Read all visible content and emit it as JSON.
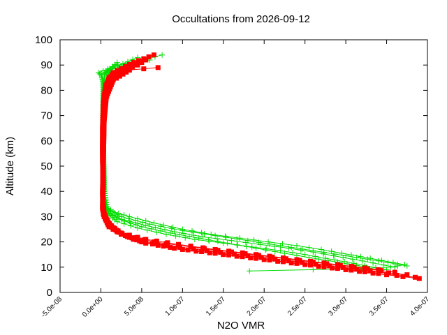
{
  "chart_data": {
    "type": "line",
    "title": "Occultations from 2026-09-12",
    "xlabel": "N2O VMR",
    "ylabel": "Altitude (km)",
    "xlim": [
      -5e-08,
      4e-07
    ],
    "ylim": [
      0,
      100
    ],
    "x_ticks": [
      -5e-08,
      0,
      5e-08,
      1e-07,
      1.5e-07,
      2e-07,
      2.5e-07,
      3e-07,
      3.5e-07,
      4e-07
    ],
    "x_tick_labels": [
      "-5.0e-08",
      "0.0e+00",
      "5.0e-08",
      "1.0e-07",
      "1.5e-07",
      "2.0e-07",
      "2.5e-07",
      "3.0e-07",
      "3.5e-07",
      "4.0e-07"
    ],
    "y_ticks": [
      0,
      10,
      20,
      30,
      40,
      50,
      60,
      70,
      80,
      90,
      100
    ],
    "y_tick_labels": [
      "0",
      "10",
      "20",
      "30",
      "40",
      "50",
      "60",
      "70",
      "80",
      "90",
      "100"
    ],
    "grid": false,
    "legend": "none",
    "series": [
      {
        "color": "#00dd00",
        "marker": "plus",
        "profiles": [
          {
            "x": [
              3.72e-07,
              3.3e-07,
              2.95e-07,
              2.7e-07,
              2.4e-07,
              2.05e-07,
              1.7e-07,
              1.35e-07,
              1e-07,
              6.5e-08,
              3.5e-08,
              1.5e-08,
              6e-09,
              4e-09,
              3.5e-09,
              3e-09,
              3e-09,
              3.5e-09,
              4e-09,
              5e-09,
              1e-08,
              4e-08,
              7.5e-08
            ],
            "y": [
              11,
              13.5,
              15.5,
              17,
              18.5,
              20,
              21.5,
              23,
              25,
              27.5,
              30,
              32,
              34,
              40,
              50,
              60,
              70,
              78,
              83,
              86,
              88,
              91,
              94
            ]
          },
          {
            "x": [
              3.6e-07,
              3.2e-07,
              2.85e-07,
              2.6e-07,
              2.3e-07,
              1.95e-07,
              1.6e-07,
              1.25e-07,
              9e-08,
              5.5e-08,
              2.5e-08,
              1e-08,
              5e-09,
              3.5e-09,
              3e-09,
              2.5e-09,
              2.5e-09,
              3e-09,
              3.5e-09,
              0,
              -3e-09,
              2e-08,
              6e-08
            ],
            "y": [
              10,
              12.5,
              14.5,
              16,
              17.5,
              19,
              20.5,
              22,
              24,
              26.5,
              29,
              31.5,
              33.5,
              40,
              50,
              60,
              70,
              78,
              83,
              86,
              87,
              90,
              92
            ]
          },
          {
            "x": [
              3.5e-07,
              3.1e-07,
              2.75e-07,
              2.5e-07,
              2.2e-07,
              1.85e-07,
              1.5e-07,
              1.15e-07,
              8e-08,
              4.5e-08,
              2e-08,
              8e-09,
              4e-09,
              3e-09,
              2.5e-09,
              2.5e-09,
              3e-09,
              4e-09,
              1e-09,
              1.5e-08,
              4.5e-08
            ],
            "y": [
              9,
              11.5,
              13.5,
              15,
              16.5,
              18,
              19.5,
              21,
              23,
              25.5,
              28,
              31,
              33,
              40,
              50,
              60,
              70,
              80,
              86,
              89,
              93
            ]
          },
          {
            "x": [
              3.25e-07,
              2.9e-07,
              2.55e-07,
              2.25e-07,
              1.9e-07,
              1.55e-07,
              1.2e-07,
              8.5e-08,
              5e-08,
              2.2e-08,
              8e-09,
              4e-09,
              3e-09,
              2.5e-09,
              3e-09,
              5e-09,
              2e-08
            ],
            "y": [
              10,
              12,
              13.8,
              15.5,
              17.5,
              19.5,
              21.5,
              23.5,
              26,
              29,
              32,
              40,
              55,
              70,
              82,
              87,
              91
            ]
          },
          {
            "x": [
              3.75e-07,
              3.4e-07,
              3e-07,
              2.6e-07,
              2.2e-07,
              1.8e-07,
              1.4e-07,
              1e-07,
              6e-08,
              2.5e-08,
              8e-09,
              3.5e-09,
              3e-09,
              3e-09,
              3.5e-09,
              1e-08,
              3e-08
            ],
            "y": [
              10.5,
              12.5,
              14.5,
              16.5,
              18.5,
              20.5,
              22.5,
              24.5,
              27,
              30,
              33,
              42,
              55,
              68,
              80,
              87,
              90
            ]
          },
          {
            "x": [
              1.82e-07,
              2.6e-07,
              3.2e-07,
              3.55e-07,
              3.72e-07
            ],
            "y": [
              8.5,
              9,
              9.5,
              10,
              11
            ]
          }
        ]
      },
      {
        "color": "#ff0000",
        "marker": "square",
        "profiles": [
          {
            "x": [
              3.85e-07,
              3.4e-07,
              2.9e-07,
              2.4e-07,
              1.9e-07,
              1.4e-07,
              9e-08,
              5e-08,
              2e-08,
              8e-09,
              3e-09,
              2e-09,
              2.5e-09,
              2e-09,
              2e-09,
              3e-09,
              6e-09,
              1.5e-08,
              4e-08,
              6.5e-08
            ],
            "y": [
              6,
              7.5,
              9.5,
              11.5,
              13.5,
              15.5,
              17.5,
              20,
              24,
              28,
              32,
              40,
              48,
              55,
              65,
              75,
              82,
              87,
              91,
              94
            ]
          },
          {
            "x": [
              3.75e-07,
              3.3e-07,
              2.8e-07,
              2.3e-07,
              1.8e-07,
              1.3e-07,
              8e-08,
              4e-08,
              1.5e-08,
              6e-09,
              2e-09,
              3e-09,
              2e-09,
              2.5e-09,
              4e-09,
              1e-08,
              3e-08,
              5.5e-08
            ],
            "y": [
              7,
              8.5,
              10.5,
              12.5,
              14.5,
              16.5,
              18.5,
              21,
              25,
              29,
              33,
              42,
              52,
              65,
              78,
              85,
              89,
              92
            ]
          },
          {
            "x": [
              3.6e-07,
              3.1e-07,
              2.6e-07,
              2.1e-07,
              1.6e-07,
              1.1e-07,
              6.5e-08,
              3e-08,
              1e-08,
              4e-09,
              2e-09,
              2.5e-09,
              2e-09,
              3e-09,
              6e-09,
              2e-08,
              4.5e-08
            ],
            "y": [
              8,
              10,
              12,
              14,
              16,
              18,
              20,
              22.5,
              26,
              30,
              34,
              45,
              58,
              72,
              82,
              87,
              90
            ]
          },
          {
            "x": [
              3.4e-07,
              2.9e-07,
              2.4e-07,
              1.9e-07,
              1.4e-07,
              9.5e-08,
              5.5e-08,
              2.5e-08,
              9e-09,
              3e-09,
              2.5e-09,
              3e-09,
              2.5e-09,
              5e-09,
              1.5e-08,
              3.5e-08,
              7e-08
            ],
            "y": [
              9,
              11,
              13,
              15,
              17,
              19,
              21,
              23.5,
              27,
              31,
              40,
              50,
              62,
              76,
              84,
              88,
              89
            ]
          },
          {
            "x": [
              3.9e-07,
              3.5e-07,
              3e-07,
              2.5e-07,
              2e-07,
              1.5e-07,
              1e-07,
              5.5e-08,
              2.5e-08,
              1e-08,
              4e-09,
              2e-09,
              3e-09,
              4e-09,
              8e-09,
              2.5e-08,
              5e-08
            ],
            "y": [
              5.5,
              7,
              9,
              11,
              13,
              15,
              17,
              19.5,
              23,
              27,
              31,
              38,
              50,
              68,
              82,
              88,
              91
            ]
          }
        ]
      }
    ]
  }
}
